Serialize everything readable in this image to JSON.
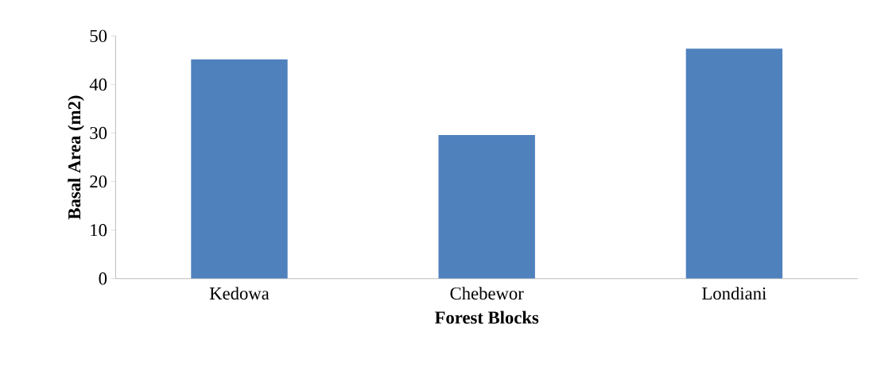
{
  "chart_data": {
    "type": "bar",
    "xlabel": "Forest Blocks",
    "ylabel": "Basal Area (m2)",
    "categories": [
      "Kedowa",
      "Chebewor",
      "Londiani"
    ],
    "values": [
      45.2,
      29.6,
      47.4
    ],
    "color": "#4f81bd",
    "ylim": [
      0,
      50
    ],
    "yticks": [
      0,
      10,
      20,
      30,
      40,
      50
    ],
    "grid": false
  }
}
